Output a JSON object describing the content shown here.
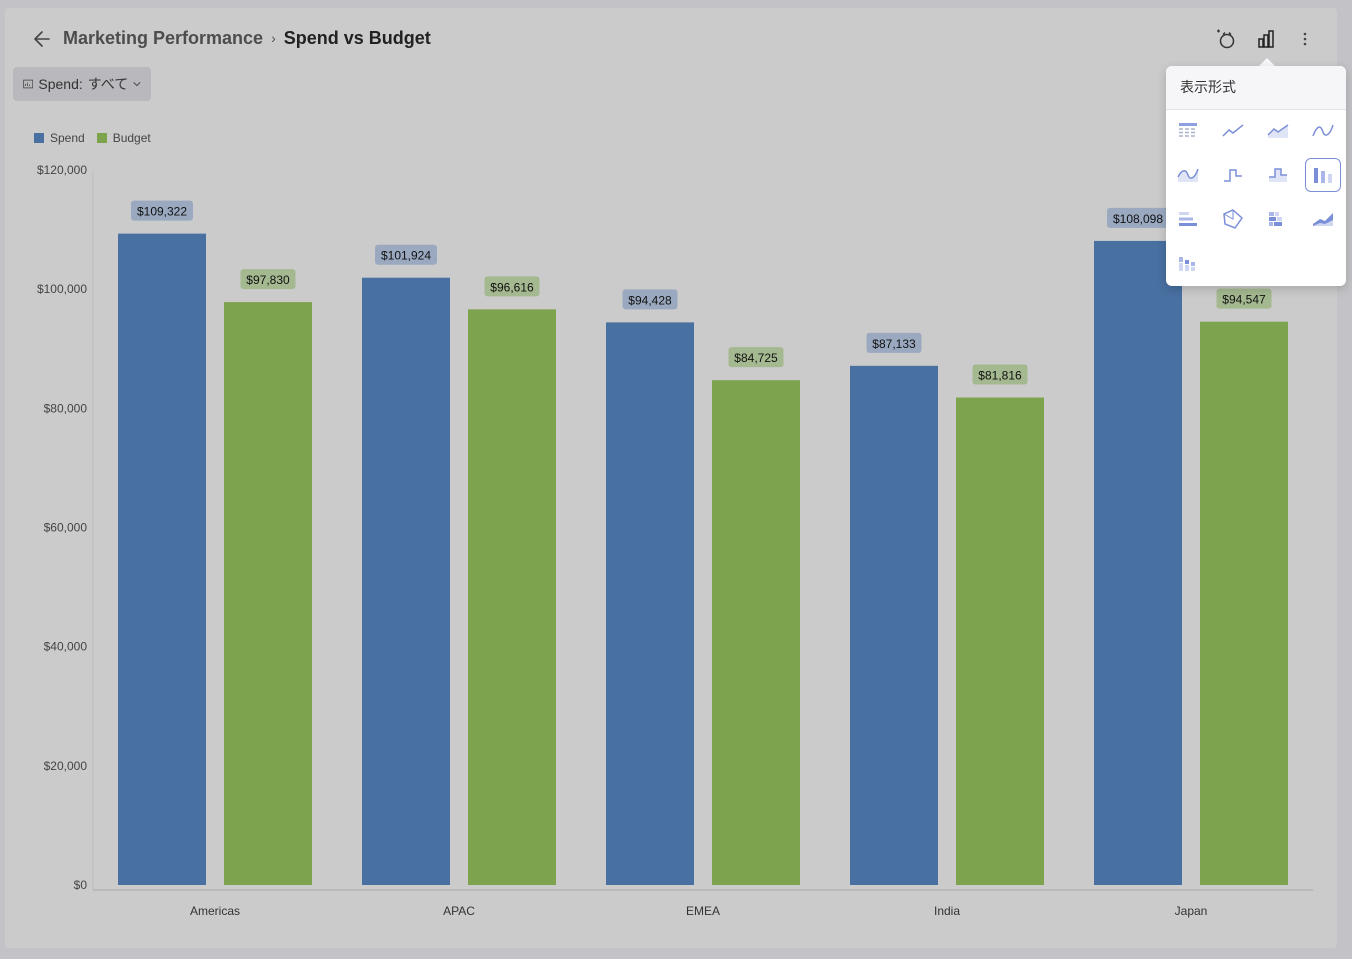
{
  "breadcrumb": {
    "parent": "Marketing Performance",
    "separator": "›",
    "current": "Spend vs Budget"
  },
  "filter": {
    "label": "Spend:",
    "value": "すべて"
  },
  "toolbar": {
    "icons": [
      "back-arrow-icon",
      "camera-icon",
      "bar-chart-icon",
      "more-vertical-icon"
    ]
  },
  "popover": {
    "title": "表示形式",
    "options": [
      "grid",
      "line",
      "area",
      "spline",
      "spline-area",
      "step-line",
      "step-area",
      "column",
      "bar",
      "pie",
      "stacked-bar",
      "stacked-area",
      "stacked-column"
    ],
    "selected": "column"
  },
  "colors": {
    "spend": "#4870a1",
    "budget": "#7ea34f",
    "spend_label_bg": "#9aa9c0",
    "budget_label_bg": "#a4b990",
    "accent": "#7b8fd8"
  },
  "chart_data": {
    "type": "bar",
    "categories": [
      "Americas",
      "APAC",
      "EMEA",
      "India",
      "Japan"
    ],
    "series": [
      {
        "name": "Spend",
        "values": [
          109322,
          101924,
          94428,
          87133,
          108098
        ],
        "labels": [
          "$109,322",
          "$101,924",
          "$94,428",
          "$87,133",
          "$108,098"
        ]
      },
      {
        "name": "Budget",
        "values": [
          97830,
          96616,
          84725,
          81816,
          94547
        ],
        "labels": [
          "$97,830",
          "$96,616",
          "$84,725",
          "$81,816",
          "$94,547"
        ]
      }
    ],
    "ylim": [
      0,
      120000
    ],
    "yticks": [
      0,
      20000,
      40000,
      60000,
      80000,
      100000,
      120000
    ],
    "ytick_labels": [
      "$0",
      "$20,000",
      "$40,000",
      "$60,000",
      "$80,000",
      "$100,000",
      "$120,000"
    ],
    "legend": "top-left",
    "grid": false
  }
}
